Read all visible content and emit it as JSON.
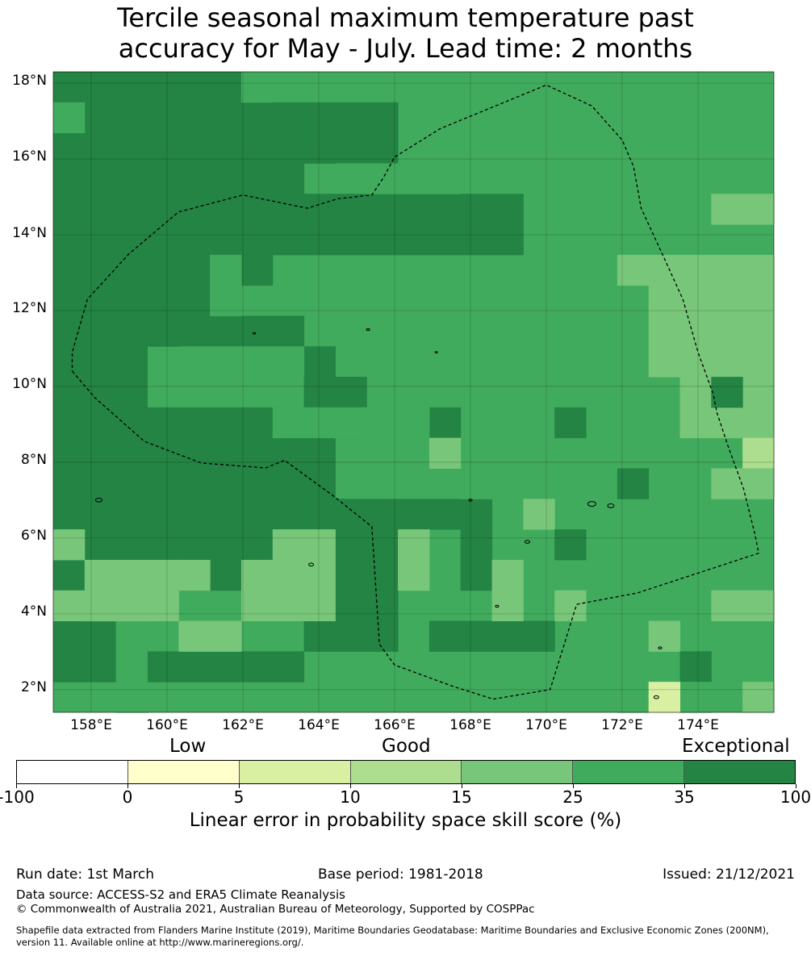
{
  "title_line1": "Tercile seasonal maximum temperature past",
  "title_line2": "accuracy for May - July. Lead time: 2 months",
  "map": {
    "lat_labels": [
      "18°N",
      "16°N",
      "14°N",
      "12°N",
      "10°N",
      "8°N",
      "6°N",
      "4°N",
      "2°N"
    ],
    "lat_values": [
      18,
      16,
      14,
      12,
      10,
      8,
      6,
      4,
      2
    ],
    "lon_labels": [
      "158°E",
      "160°E",
      "162°E",
      "164°E",
      "166°E",
      "168°E",
      "170°E",
      "172°E",
      "174°E"
    ],
    "lon_values": [
      158,
      160,
      162,
      164,
      166,
      168,
      170,
      172,
      174
    ],
    "lon_range": [
      157.0,
      176.0
    ],
    "lat_range": [
      1.4,
      18.3
    ],
    "eez_boundary": [
      [
        157.5,
        10.4
      ],
      [
        158.1,
        9.7
      ],
      [
        159.4,
        8.55
      ],
      [
        160.9,
        7.98
      ],
      [
        162.6,
        7.85
      ],
      [
        163.1,
        8.05
      ],
      [
        164.4,
        7.1
      ],
      [
        165.4,
        6.3
      ],
      [
        165.6,
        3.2
      ],
      [
        166.0,
        2.65
      ],
      [
        167.5,
        2.1
      ],
      [
        168.6,
        1.75
      ],
      [
        170.1,
        2.0
      ],
      [
        170.8,
        4.25
      ],
      [
        172.4,
        4.55
      ],
      [
        175.6,
        5.6
      ],
      [
        175.5,
        6.1
      ],
      [
        175.2,
        7.3
      ],
      [
        174.8,
        8.4
      ],
      [
        174.5,
        9.3
      ],
      [
        174.4,
        9.8
      ],
      [
        174.0,
        10.9
      ],
      [
        173.6,
        12.3
      ],
      [
        173.1,
        13.4
      ],
      [
        172.5,
        14.7
      ],
      [
        172.3,
        15.8
      ],
      [
        172.0,
        16.5
      ],
      [
        171.2,
        17.4
      ],
      [
        170.0,
        17.95
      ],
      [
        167.2,
        16.8
      ],
      [
        166.0,
        16.05
      ],
      [
        165.7,
        15.5
      ],
      [
        165.4,
        15.05
      ],
      [
        164.5,
        14.95
      ],
      [
        163.7,
        14.7
      ],
      [
        162.0,
        15.05
      ],
      [
        160.3,
        14.6
      ],
      [
        159.0,
        13.5
      ],
      [
        157.9,
        12.3
      ],
      [
        157.5,
        10.9
      ]
    ]
  },
  "colorbar": {
    "category_labels": {
      "low": "Low",
      "good": "Good",
      "exceptional": "Exceptional"
    },
    "ticks": [
      "-100",
      "0",
      "5",
      "10",
      "15",
      "25",
      "35",
      "100"
    ],
    "colors": [
      "#ffffff",
      "#ffffcc",
      "#d9f0a3",
      "#addd8e",
      "#78c679",
      "#41ab5d",
      "#238443"
    ],
    "label": "Linear error in probability space skill score (%)"
  },
  "footer": {
    "run_date": "Run date: 1st March",
    "base_period": "Base period: 1981-2018",
    "issued": "Issued: 21/12/2021",
    "data_source": "Data source: ACCESS-S2 and ERA5 Climate Reanalysis",
    "copyright": "© Commonwealth of Australia 2021, Australian Bureau of Meteorology, Supported by COSPPac",
    "shapefile_line1": "Shapefile data extracted from Flanders Marine Institute (2019), Maritime Boundaries Geodatabase: Maritime Boundaries and Exclusive Economic Zones (200NM),",
    "shapefile_line2": "version 11. Available online at http://www.marineregions.org/."
  }
}
